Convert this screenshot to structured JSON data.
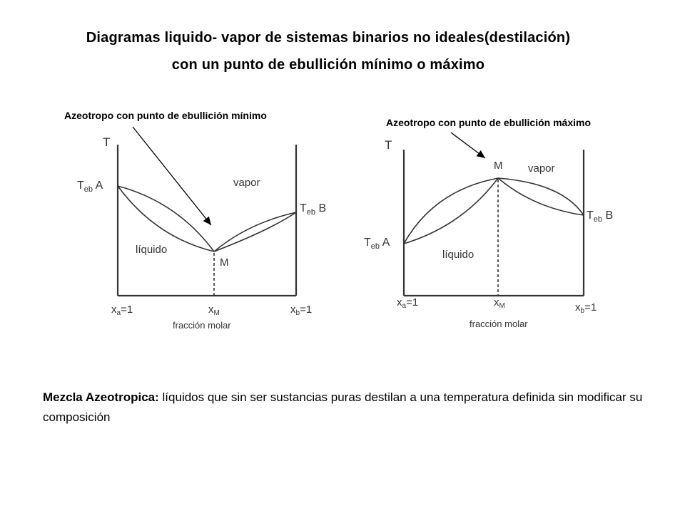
{
  "heading": {
    "line1": "Diagramas liquido- vapor de sistemas binarios no ideales(destilación)",
    "line2": "con un punto de ebullición mínimo o máximo"
  },
  "callouts": {
    "minimum": "Azeotropo con punto de ebullición mínimo",
    "maximum": "Azeotropo con punto de ebullición máximo"
  },
  "diagram_min": {
    "axis_label": "T",
    "teb_prefix": "T",
    "teb_sub": "eb",
    "teb_a_suffix": " A",
    "teb_b_suffix": " B",
    "region_vapor": "vapor",
    "region_liquid": "líquido",
    "azeotrope_point": "M",
    "x_a_label": "x",
    "x_a_sub": "a",
    "x_a_value": "=1",
    "x_m_label": "x",
    "x_m_sub": "M",
    "x_b_label": "x",
    "x_b_sub": "b",
    "x_b_value": "=1",
    "x_axis_title": "fracción molar"
  },
  "diagram_max": {
    "axis_label": "T",
    "teb_prefix": "T",
    "teb_sub": "eb",
    "teb_a_suffix": " A",
    "teb_b_suffix": " B",
    "region_vapor": "vapor",
    "region_liquid": "líquido",
    "azeotrope_point": "M",
    "x_a_label": "x",
    "x_a_sub": "a",
    "x_a_value": "=1",
    "x_m_label": "x",
    "x_m_sub": "M",
    "x_b_label": "x",
    "x_b_sub": "b",
    "x_b_value": "=1",
    "x_axis_title": "fracción molar"
  },
  "definition": {
    "term": "Mezcla Azeotropica",
    "colon": ": ",
    "text": "líquidos que sin ser sustancias puras destilan a una temperatura definida  sin modificar su composición"
  },
  "colors": {
    "text": "#000000",
    "diagram_ink": "#333333",
    "background": "#ffffff"
  }
}
